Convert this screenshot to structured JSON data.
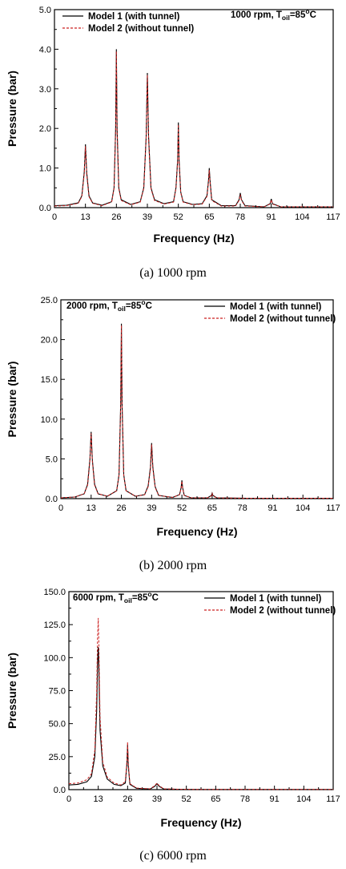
{
  "chart_data": [
    {
      "type": "line",
      "condition": "1000 rpm, T",
      "condition_sub": "oil",
      "condition_sup": "o",
      "condition_value": "=85",
      "condition_unit": "C",
      "xlabel": "Frequency (Hz)",
      "ylabel": "Pressure (bar)",
      "xlim": [
        0,
        117
      ],
      "ylim": [
        0,
        5.0
      ],
      "xticks": [
        "0",
        "13",
        "26",
        "39",
        "52",
        "65",
        "78",
        "91",
        "104",
        "117"
      ],
      "yticks": [
        "0.0",
        "1.0",
        "2.0",
        "3.0",
        "4.0",
        "5.0"
      ],
      "legend": "top-left",
      "caption": "(a)  1000  rpm",
      "series": [
        {
          "name": "Model 1 (with tunnel)",
          "color": "#000000",
          "style": "solid",
          "x": [
            0,
            5,
            10,
            11.5,
            12.5,
            13,
            13.5,
            14.5,
            16,
            20,
            24,
            25,
            25.7,
            26,
            26.3,
            27,
            28,
            32,
            36,
            37.5,
            38.5,
            39,
            39.5,
            40.5,
            42,
            46,
            50,
            51,
            51.7,
            52,
            52.3,
            53,
            54,
            58,
            62,
            64,
            64.7,
            65,
            65.3,
            66,
            70,
            76,
            77.5,
            78,
            78.5,
            80,
            88,
            90.5,
            91,
            91.5,
            95,
            117
          ],
          "y": [
            0.05,
            0.06,
            0.12,
            0.3,
            0.9,
            1.6,
            0.9,
            0.3,
            0.12,
            0.06,
            0.15,
            0.5,
            2.0,
            4.0,
            2.0,
            0.5,
            0.2,
            0.08,
            0.15,
            0.5,
            1.8,
            3.4,
            1.8,
            0.5,
            0.2,
            0.1,
            0.15,
            0.5,
            1.2,
            2.15,
            1.2,
            0.4,
            0.15,
            0.08,
            0.1,
            0.3,
            0.7,
            1.0,
            0.7,
            0.2,
            0.05,
            0.05,
            0.2,
            0.37,
            0.2,
            0.05,
            0.02,
            0.1,
            0.22,
            0.1,
            0.02,
            0.02
          ]
        },
        {
          "name": "Model 2 (without tunnel)",
          "color": "#cc2222",
          "style": "dashed",
          "x": [
            0,
            5,
            10,
            11.5,
            12.5,
            13,
            13.5,
            14.5,
            16,
            20,
            24,
            25,
            25.7,
            26,
            26.3,
            27,
            28,
            32,
            36,
            37.5,
            38.5,
            39,
            39.5,
            40.5,
            42,
            46,
            50,
            51,
            51.7,
            52,
            52.3,
            53,
            54,
            58,
            62,
            64,
            64.7,
            65,
            65.3,
            66,
            70,
            76,
            77.5,
            78,
            78.5,
            80,
            88,
            90.5,
            91,
            91.5,
            95,
            117
          ],
          "y": [
            0.04,
            0.05,
            0.11,
            0.28,
            0.85,
            1.55,
            0.85,
            0.28,
            0.11,
            0.05,
            0.14,
            0.48,
            1.95,
            3.95,
            1.95,
            0.48,
            0.18,
            0.07,
            0.14,
            0.48,
            1.75,
            3.35,
            1.75,
            0.48,
            0.18,
            0.09,
            0.14,
            0.48,
            1.15,
            2.1,
            1.15,
            0.38,
            0.14,
            0.07,
            0.09,
            0.28,
            0.65,
            0.95,
            0.65,
            0.18,
            0.04,
            0.04,
            0.18,
            0.33,
            0.18,
            0.04,
            0.02,
            0.09,
            0.2,
            0.09,
            0.02,
            0.02
          ]
        }
      ]
    },
    {
      "type": "line",
      "condition": "2000 rpm, T",
      "condition_sub": "oil",
      "condition_sup": "o",
      "condition_value": "=85",
      "condition_unit": "C",
      "xlabel": "Frequency (Hz)",
      "ylabel": "Pressure (bar)",
      "xlim": [
        0,
        117
      ],
      "ylim": [
        0,
        25.0
      ],
      "xticks": [
        "0",
        "13",
        "26",
        "39",
        "52",
        "65",
        "78",
        "91",
        "104",
        "117"
      ],
      "yticks": [
        "0.0",
        "5.0",
        "10.0",
        "15.0",
        "20.0",
        "25.0"
      ],
      "legend": "top-right",
      "caption": "(b)  2000  rpm",
      "series": [
        {
          "name": "Model 1 (with tunnel)",
          "color": "#000000",
          "style": "solid",
          "x": [
            0,
            6,
            10,
            11.5,
            12.5,
            13,
            13.5,
            14.5,
            16,
            20,
            24,
            25,
            25.7,
            26,
            26.3,
            27,
            28,
            32,
            36,
            37.5,
            38.5,
            39,
            39.5,
            40.5,
            42,
            48,
            51,
            51.7,
            52,
            52.3,
            53,
            56,
            63,
            64.7,
            65,
            65.3,
            67,
            80,
            117
          ],
          "y": [
            0.1,
            0.2,
            0.6,
            1.8,
            5.0,
            8.4,
            5.0,
            1.8,
            0.6,
            0.3,
            1.0,
            3.0,
            12.0,
            22.0,
            12.0,
            3.0,
            1.0,
            0.3,
            0.5,
            1.6,
            4.0,
            7.0,
            4.0,
            1.5,
            0.4,
            0.15,
            0.5,
            1.4,
            2.3,
            1.4,
            0.4,
            0.1,
            0.1,
            0.4,
            0.7,
            0.4,
            0.1,
            0.05,
            0.05
          ]
        },
        {
          "name": "Model 2 (without tunnel)",
          "color": "#cc2222",
          "style": "dashed",
          "x": [
            0,
            6,
            10,
            11.5,
            12.5,
            13,
            13.5,
            14.5,
            16,
            20,
            24,
            25,
            25.7,
            26,
            26.3,
            27,
            28,
            32,
            36,
            37.5,
            38.5,
            39,
            39.5,
            40.5,
            42,
            48,
            51,
            51.7,
            52,
            52.3,
            53,
            56,
            63,
            64.7,
            65,
            65.3,
            67,
            80,
            117
          ],
          "y": [
            0.1,
            0.2,
            0.6,
            1.7,
            4.8,
            8.2,
            4.8,
            1.7,
            0.6,
            0.3,
            1.0,
            2.9,
            11.8,
            21.8,
            11.8,
            2.9,
            1.0,
            0.3,
            0.5,
            1.5,
            3.8,
            6.8,
            3.8,
            1.4,
            0.4,
            0.15,
            0.5,
            1.3,
            2.2,
            1.3,
            0.4,
            0.1,
            0.1,
            0.35,
            0.65,
            0.35,
            0.1,
            0.05,
            0.05
          ]
        }
      ]
    },
    {
      "type": "line",
      "condition": "6000 rpm, T",
      "condition_sub": "oil",
      "condition_sup": "o",
      "condition_value": "=85",
      "condition_unit": "C",
      "xlabel": "Frequency (Hz)",
      "ylabel": "Pressure (bar)",
      "xlim": [
        0,
        117
      ],
      "ylim": [
        0,
        150.0
      ],
      "xticks": [
        "0",
        "13",
        "26",
        "39",
        "52",
        "65",
        "78",
        "91",
        "104",
        "117"
      ],
      "yticks": [
        "0.0",
        "25.0",
        "50.0",
        "75.0",
        "100.0",
        "125.0",
        "150.0"
      ],
      "legend": "top-right",
      "caption": "(c)  6000  rpm",
      "series": [
        {
          "name": "Model 1 (with tunnel)",
          "color": "#000000",
          "style": "solid",
          "x": [
            0,
            4,
            8,
            10,
            11.5,
            12.3,
            12.7,
            13,
            13.3,
            13.8,
            15,
            17,
            20,
            23,
            25,
            25.7,
            26,
            26.3,
            27,
            30,
            36,
            38,
            39,
            40,
            42,
            50,
            60,
            117
          ],
          "y": [
            3.5,
            4.0,
            6.0,
            10.0,
            25.0,
            60.0,
            95.0,
            108.0,
            90.0,
            45.0,
            18.0,
            8.0,
            4.0,
            3.0,
            5.0,
            20.0,
            34.0,
            18.0,
            4.0,
            1.0,
            0.5,
            2.5,
            4.5,
            2.5,
            0.5,
            0.2,
            0.1,
            0.1
          ]
        },
        {
          "name": "Model 2 (without tunnel)",
          "color": "#cc2222",
          "style": "dashed",
          "x": [
            0,
            4,
            8,
            10,
            11.5,
            12.3,
            12.7,
            13,
            13.3,
            13.8,
            15,
            17,
            20,
            23,
            25,
            25.7,
            26,
            26.3,
            27,
            30,
            36,
            38,
            39,
            40,
            42,
            50,
            60,
            117
          ],
          "y": [
            4.5,
            5.0,
            7.5,
            12.0,
            30.0,
            75.0,
            115.0,
            130.0,
            108.0,
            55.0,
            21.0,
            9.5,
            5.0,
            3.5,
            6.0,
            22.0,
            36.0,
            20.0,
            4.5,
            1.2,
            0.6,
            3.0,
            5.0,
            3.0,
            0.6,
            0.25,
            0.12,
            0.12
          ]
        }
      ]
    }
  ]
}
